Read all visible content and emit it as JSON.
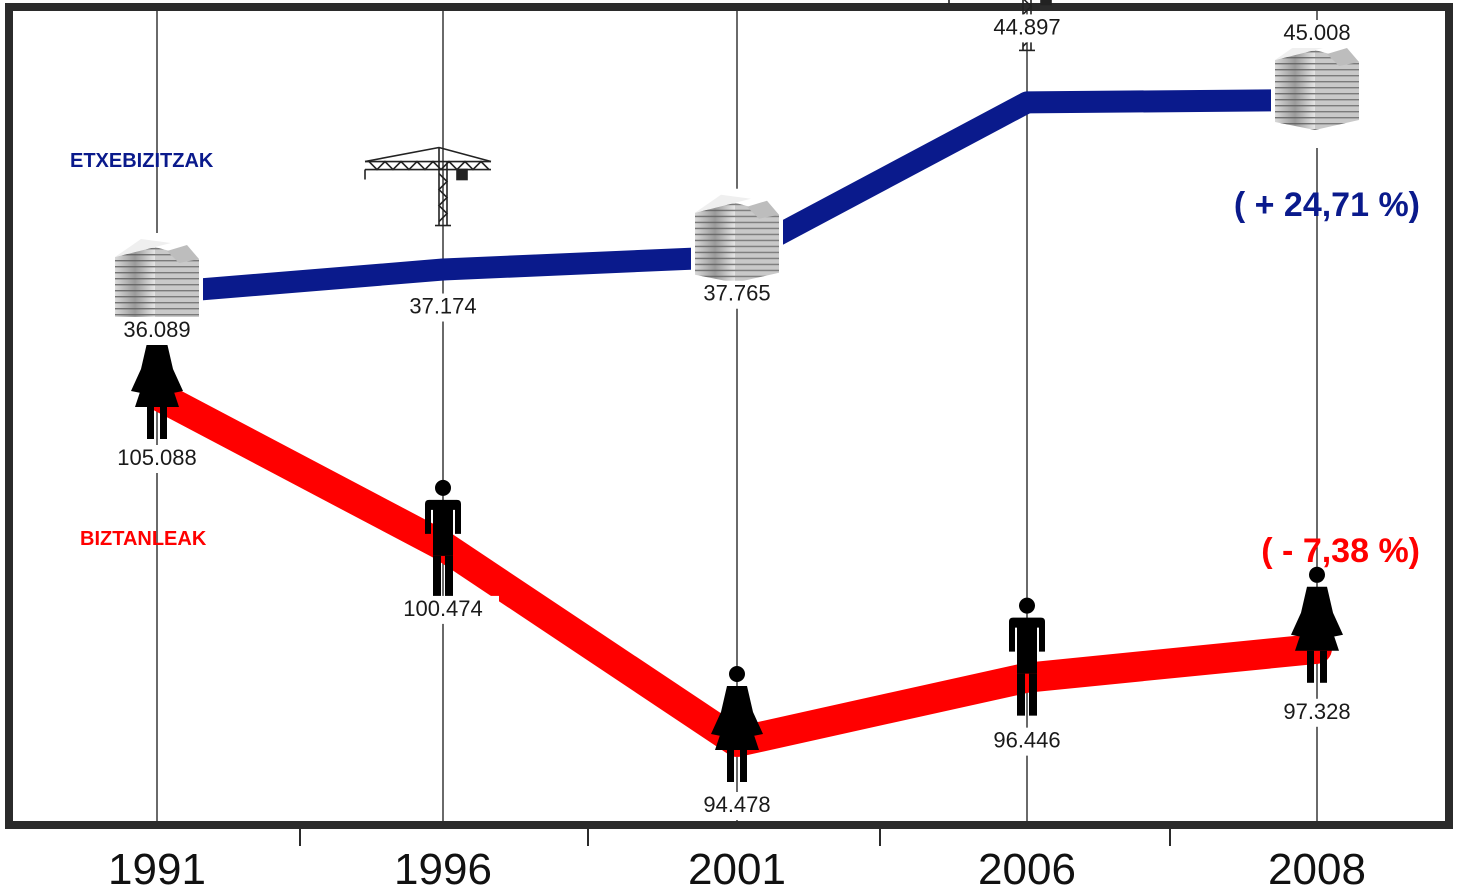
{
  "chart_data": {
    "type": "line",
    "x": [
      "1991",
      "1996",
      "2001",
      "2006",
      "2008"
    ],
    "series": [
      {
        "name": "ETXEBIZITZAK",
        "color": "#0a1a8c",
        "values": [
          36089,
          37174,
          37765,
          44897,
          45008
        ],
        "labels": [
          "36.089",
          "37.174",
          "37.765",
          "44.897",
          "45.008"
        ],
        "change_label": "( + 24,71 %)",
        "icons": [
          "building-icon",
          "crane-icon",
          "building-icon",
          "crane-icon",
          "building-icon"
        ]
      },
      {
        "name": "BIZTANLEAK",
        "color": "#ff0000",
        "values": [
          105088,
          100474,
          94478,
          96446,
          97328
        ],
        "labels": [
          "105.088",
          "100.474",
          "94.478",
          "96.446",
          "97.328"
        ],
        "change_label": "( - 7,38 %)",
        "icons": [
          "woman-icon",
          "man-icon",
          "woman-icon",
          "man-icon",
          "woman-icon"
        ]
      }
    ],
    "grid": true,
    "legend": "inline-left"
  }
}
